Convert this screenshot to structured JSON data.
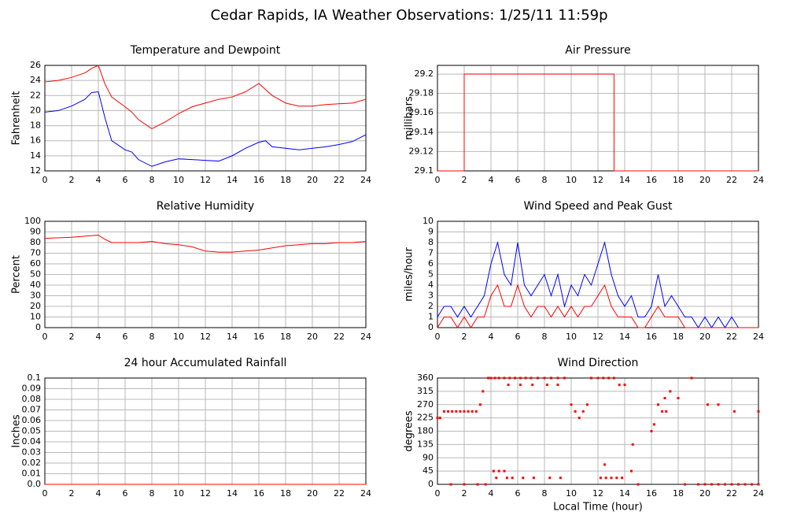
{
  "title": "Cedar Rapids, IA Weather Observations: 1/25/11 11:59p",
  "chart_data": [
    {
      "type": "line",
      "title": "Temperature and Dewpoint",
      "ylabel": "Fahrenheit",
      "x": [
        0,
        1,
        2,
        3,
        3.5,
        4,
        4.5,
        5,
        6,
        6.5,
        7,
        8,
        9,
        10,
        11,
        12,
        13,
        14,
        15,
        16,
        16.5,
        17,
        18,
        19,
        20,
        21,
        22,
        23,
        24
      ],
      "series": [
        {
          "color": "#ff0000",
          "values": [
            23.8,
            24,
            24.4,
            25,
            25.6,
            26,
            23.5,
            21.8,
            20.5,
            19.8,
            18.8,
            17.6,
            18.5,
            19.6,
            20.5,
            21,
            21.5,
            21.8,
            22.5,
            23.6,
            22.8,
            22,
            21,
            20.6,
            20.6,
            20.8,
            20.9,
            21,
            21.5
          ]
        },
        {
          "color": "#0000ff",
          "values": [
            19.8,
            20,
            20.6,
            21.5,
            22.4,
            22.5,
            19,
            16,
            14.8,
            14.5,
            13.5,
            12.6,
            13.2,
            13.6,
            13.5,
            13.4,
            13.3,
            14,
            15,
            15.8,
            16,
            15.2,
            15,
            14.8,
            15,
            15.2,
            15.5,
            15.9,
            16.8
          ]
        }
      ],
      "xlim": [
        0,
        24
      ],
      "xticks": [
        0,
        2,
        4,
        6,
        8,
        10,
        12,
        14,
        16,
        18,
        20,
        22,
        24
      ],
      "ylim": [
        12,
        26
      ],
      "yticks": [
        12,
        14,
        16,
        18,
        20,
        22,
        24,
        26
      ],
      "grid": true
    },
    {
      "type": "line",
      "title": "Air Pressure",
      "ylabel": "millibars",
      "x": [
        0,
        2,
        2,
        13.2,
        13.2,
        24
      ],
      "series": [
        {
          "color": "#ff0000",
          "values": [
            29.1,
            29.1,
            29.2,
            29.2,
            29.1,
            29.1
          ]
        }
      ],
      "xlim": [
        0,
        24
      ],
      "xticks": [
        0,
        2,
        4,
        6,
        8,
        10,
        12,
        14,
        16,
        18,
        20,
        22,
        24
      ],
      "ylim": [
        29.1,
        29.209
      ],
      "yticks": [
        29.1,
        29.12,
        29.14,
        29.16,
        29.18,
        29.2
      ],
      "grid": true
    },
    {
      "type": "line",
      "title": "Relative Humidity",
      "ylabel": "Percent",
      "x": [
        0,
        2,
        3,
        4,
        4.5,
        5,
        6,
        7,
        8,
        9,
        10,
        11,
        12,
        13,
        14,
        15,
        16,
        17,
        18,
        19,
        20,
        21,
        22,
        23,
        24
      ],
      "series": [
        {
          "color": "#ff0000",
          "values": [
            84,
            85,
            86,
            87,
            83,
            80,
            80,
            80,
            81,
            79,
            78,
            76,
            72,
            71,
            71,
            72,
            73,
            75,
            77,
            78,
            79,
            79,
            80,
            80,
            81
          ]
        }
      ],
      "xlim": [
        0,
        24
      ],
      "xticks": [
        0,
        2,
        4,
        6,
        8,
        10,
        12,
        14,
        16,
        18,
        20,
        22,
        24
      ],
      "ylim": [
        0,
        100
      ],
      "yticks": [
        0,
        10,
        20,
        30,
        40,
        50,
        60,
        70,
        80,
        90,
        100
      ],
      "grid": true
    },
    {
      "type": "line",
      "title": "Wind Speed and Peak Gust",
      "ylabel": "miles/hour",
      "x": [
        0,
        0.5,
        1,
        1.5,
        2,
        2.5,
        3,
        3.5,
        4,
        4.5,
        5,
        5.5,
        6,
        6.5,
        7,
        7.5,
        8,
        8.5,
        9,
        9.5,
        10,
        10.5,
        11,
        11.5,
        12,
        12.5,
        13,
        13.5,
        14,
        14.5,
        15,
        15.5,
        16,
        16.5,
        17,
        17.5,
        18,
        18.5,
        19,
        19.5,
        20,
        20.5,
        21,
        21.5,
        22,
        22.5,
        23,
        23.5,
        24
      ],
      "series": [
        {
          "color": "#0000ff",
          "values": [
            1,
            2,
            2,
            1,
            2,
            1,
            2,
            3,
            6,
            8,
            5,
            4,
            8,
            4,
            3,
            4,
            5,
            3,
            5,
            2,
            4,
            3,
            5,
            4,
            6,
            8,
            5,
            3,
            2,
            3,
            1,
            1,
            2,
            5,
            2,
            3,
            2,
            1,
            1,
            0,
            1,
            0,
            1,
            0,
            1,
            0,
            0,
            0,
            0
          ]
        },
        {
          "color": "#ff0000",
          "values": [
            0,
            1,
            1,
            0,
            1,
            0,
            1,
            1,
            3,
            4,
            2,
            2,
            4,
            2,
            1,
            2,
            2,
            1,
            2,
            1,
            2,
            1,
            2,
            2,
            3,
            4,
            2,
            1,
            1,
            1,
            0,
            0,
            1,
            2,
            1,
            1,
            1,
            0,
            0,
            0,
            0,
            0,
            0,
            0,
            0,
            0,
            0,
            0,
            0
          ]
        }
      ],
      "xlim": [
        0,
        24
      ],
      "xticks": [
        0,
        2,
        4,
        6,
        8,
        10,
        12,
        14,
        16,
        18,
        20,
        22,
        24
      ],
      "ylim": [
        0,
        10
      ],
      "yticks": [
        0,
        1,
        2,
        3,
        4,
        5,
        6,
        7,
        8,
        9,
        10
      ],
      "grid": true
    },
    {
      "type": "line",
      "title": "24 hour Accumulated Rainfall",
      "ylabel": "Inches",
      "x": [
        0,
        24
      ],
      "series": [
        {
          "color": "#ff0000",
          "values": [
            0,
            0
          ]
        }
      ],
      "xlim": [
        0,
        24
      ],
      "xticks": [
        0,
        2,
        4,
        6,
        8,
        10,
        12,
        14,
        16,
        18,
        20,
        22,
        24
      ],
      "ylim": [
        0,
        0.1
      ],
      "yticks": [
        {
          "value": 0,
          "label": "0.0"
        },
        0.01,
        0.02,
        0.03,
        0.04,
        0.05,
        0.06,
        0.07,
        0.08,
        0.09,
        0.1
      ],
      "grid": true
    },
    {
      "type": "scatter",
      "title": "Wind Direction",
      "ylabel": "degrees",
      "xlabel": "Local Time (hour)",
      "x": [
        0,
        0.2,
        0.5,
        0.8,
        1.1,
        1.4,
        1.7,
        2.0,
        2.3,
        2.6,
        2.9,
        1.0,
        2.0,
        3.0,
        3.2,
        3.4,
        3.6,
        3.8,
        4.0,
        4.3,
        4.6,
        5.0,
        5.4,
        5.8,
        6.2,
        6.6,
        7.0,
        7.5,
        8.0,
        8.5,
        9.0,
        9.5,
        4.2,
        4.6,
        5.0,
        4.4,
        5.2,
        5.6,
        6.4,
        7.2,
        8.4,
        9.2,
        5.3,
        6.2,
        7.1,
        8.2,
        9.0,
        10.0,
        10.3,
        10.6,
        10.9,
        11.2,
        11.5,
        12.0,
        12.4,
        12.8,
        13.2,
        13.6,
        14.0,
        12.2,
        12.6,
        13.0,
        13.4,
        13.8,
        12.5,
        14.5,
        15.0,
        14.6,
        16.0,
        16.2,
        16.5,
        16.8,
        17.1,
        17.4,
        17.0,
        18.0,
        18.5,
        19.0,
        19.5,
        20.0,
        20.5,
        21.0,
        21.5,
        22.0,
        22.5,
        23.0,
        23.5,
        24.0,
        20.2,
        21.0,
        22.2,
        24.0
      ],
      "series": [
        {
          "color": "#ff0000",
          "values": [
            225,
            225,
            247,
            247,
            247,
            247,
            247,
            247,
            247,
            247,
            247,
            0,
            0,
            0,
            270,
            315,
            0,
            360,
            360,
            360,
            360,
            360,
            360,
            360,
            360,
            360,
            360,
            360,
            360,
            360,
            360,
            360,
            45,
            45,
            45,
            22,
            22,
            22,
            22,
            22,
            22,
            22,
            337,
            337,
            337,
            337,
            337,
            270,
            247,
            225,
            247,
            270,
            360,
            360,
            360,
            360,
            360,
            337,
            337,
            22,
            22,
            22,
            22,
            22,
            67,
            45,
            0,
            135,
            180,
            203,
            270,
            247,
            247,
            315,
            292,
            292,
            0,
            360,
            0,
            0,
            0,
            0,
            0,
            0,
            0,
            0,
            0,
            0,
            270,
            270,
            247,
            247
          ]
        }
      ],
      "xlim": [
        0,
        24
      ],
      "xticks": [
        0,
        2,
        4,
        6,
        8,
        10,
        12,
        14,
        16,
        18,
        20,
        22,
        24
      ],
      "ylim": [
        0,
        360
      ],
      "yticks": [
        0,
        45,
        90,
        135,
        180,
        225,
        270,
        315,
        360
      ],
      "grid": true
    }
  ]
}
